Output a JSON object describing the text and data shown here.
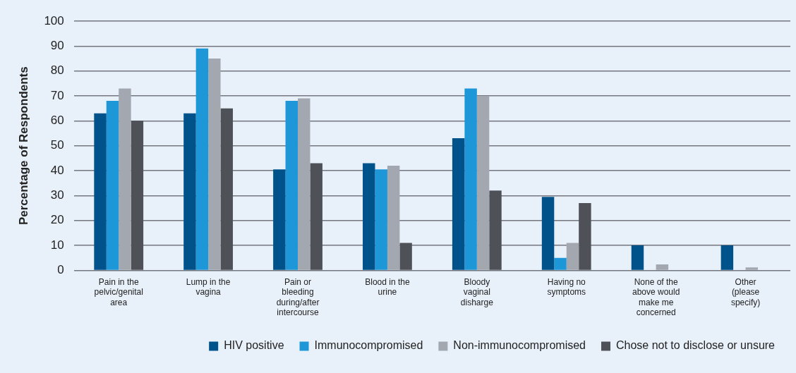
{
  "chart_data": {
    "type": "bar",
    "ylabel": "Percentage of Respondents",
    "categories": [
      "Pain in the pelvic/genital area",
      "Lump in the vagina",
      "Pain or bleeding during/after intercourse",
      "Blood in the urine",
      "Bloody vaginal disharge",
      "Having no symptoms",
      "None of the above would make me concerned",
      "Other (please specify)"
    ],
    "series": [
      {
        "name": "HIV positive",
        "color": "#00528a",
        "values": [
          63,
          63,
          40.5,
          43,
          53,
          29.5,
          10,
          10
        ]
      },
      {
        "name": "Immunocompromised",
        "color": "#1d97d7",
        "values": [
          68,
          89,
          68,
          40.5,
          73,
          5,
          0,
          0
        ]
      },
      {
        "name": "Non-immunocompromised",
        "color": "#a3a8b0",
        "values": [
          73,
          85,
          69,
          42,
          70,
          11,
          2.4,
          1.2
        ]
      },
      {
        "name": "Chose not to disclose or unsure",
        "color": "#4f5159",
        "values": [
          60,
          65,
          43,
          11,
          32,
          27,
          0,
          0
        ]
      }
    ],
    "ylim": [
      0,
      100
    ],
    "yticks": [
      0,
      10,
      20,
      30,
      40,
      50,
      60,
      70,
      80,
      90,
      100
    ],
    "grid": "y",
    "legend": "bottom right"
  }
}
